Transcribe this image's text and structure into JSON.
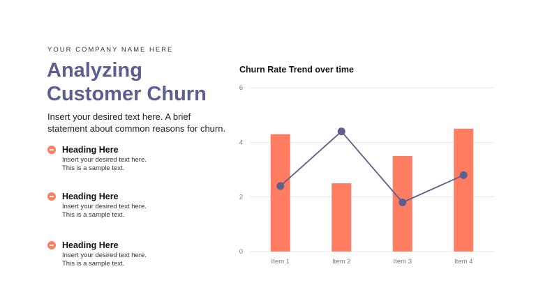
{
  "header": {
    "company": "YOUR COMPANY NAME HERE",
    "title": "Analyzing Customer Churn",
    "intro": "Insert your desired text here. A brief statement about common reasons for churn."
  },
  "points": [
    {
      "heading": "Heading Here",
      "line1": "Insert your desired text here.",
      "line2": "This is a sample text."
    },
    {
      "heading": "Heading Here",
      "line1": "Insert your desired text here.",
      "line2": "This is a sample text."
    },
    {
      "heading": "Heading Here",
      "line1": "Insert your desired text here.",
      "line2": "This is a sample text."
    }
  ],
  "colors": {
    "accent": "#ff7d61",
    "line": "#5b5e8e",
    "title": "#5b5e8e",
    "grid": "#e6e6e6"
  },
  "chart_data": {
    "type": "bar",
    "title": "Churn Rate Trend over time",
    "categories": [
      "Item 1",
      "Item 2",
      "Item 3",
      "Item 4"
    ],
    "series": [
      {
        "type": "bar",
        "values": [
          4.3,
          2.5,
          3.5,
          4.5
        ]
      },
      {
        "type": "line",
        "values": [
          2.4,
          4.4,
          1.8,
          2.8
        ]
      }
    ],
    "ylim": [
      0,
      6
    ],
    "yticks": [
      0,
      2,
      4,
      6
    ],
    "grid": true,
    "legend": "none"
  }
}
